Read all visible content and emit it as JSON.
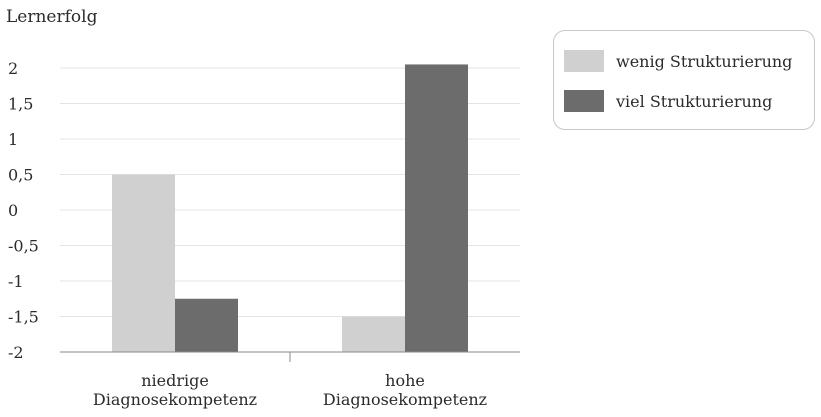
{
  "chart_data": {
    "type": "bar",
    "ylabel": "Lernerfolg",
    "categories": [
      [
        "niedrige",
        "Diagnosekompetenz"
      ],
      [
        "hohe",
        "Diagnosekompetenz"
      ]
    ],
    "series": [
      {
        "name": "wenig Strukturierung",
        "values": [
          0.5,
          -1.5
        ],
        "color": "#d0d0d0"
      },
      {
        "name": "viel Strukturierung",
        "values": [
          -1.25,
          2.05
        ],
        "color": "#6c6c6c"
      }
    ],
    "yticks": [
      "2",
      "1,5",
      "1",
      "0,5",
      "0",
      "-0,5",
      "-1",
      "-1,5",
      "-2"
    ],
    "ytick_values": [
      2,
      1.5,
      1,
      0.5,
      0,
      -0.5,
      -1,
      -1.5,
      -2
    ],
    "ylim": [
      -2,
      2
    ],
    "grid": true,
    "legend": "top-right"
  }
}
